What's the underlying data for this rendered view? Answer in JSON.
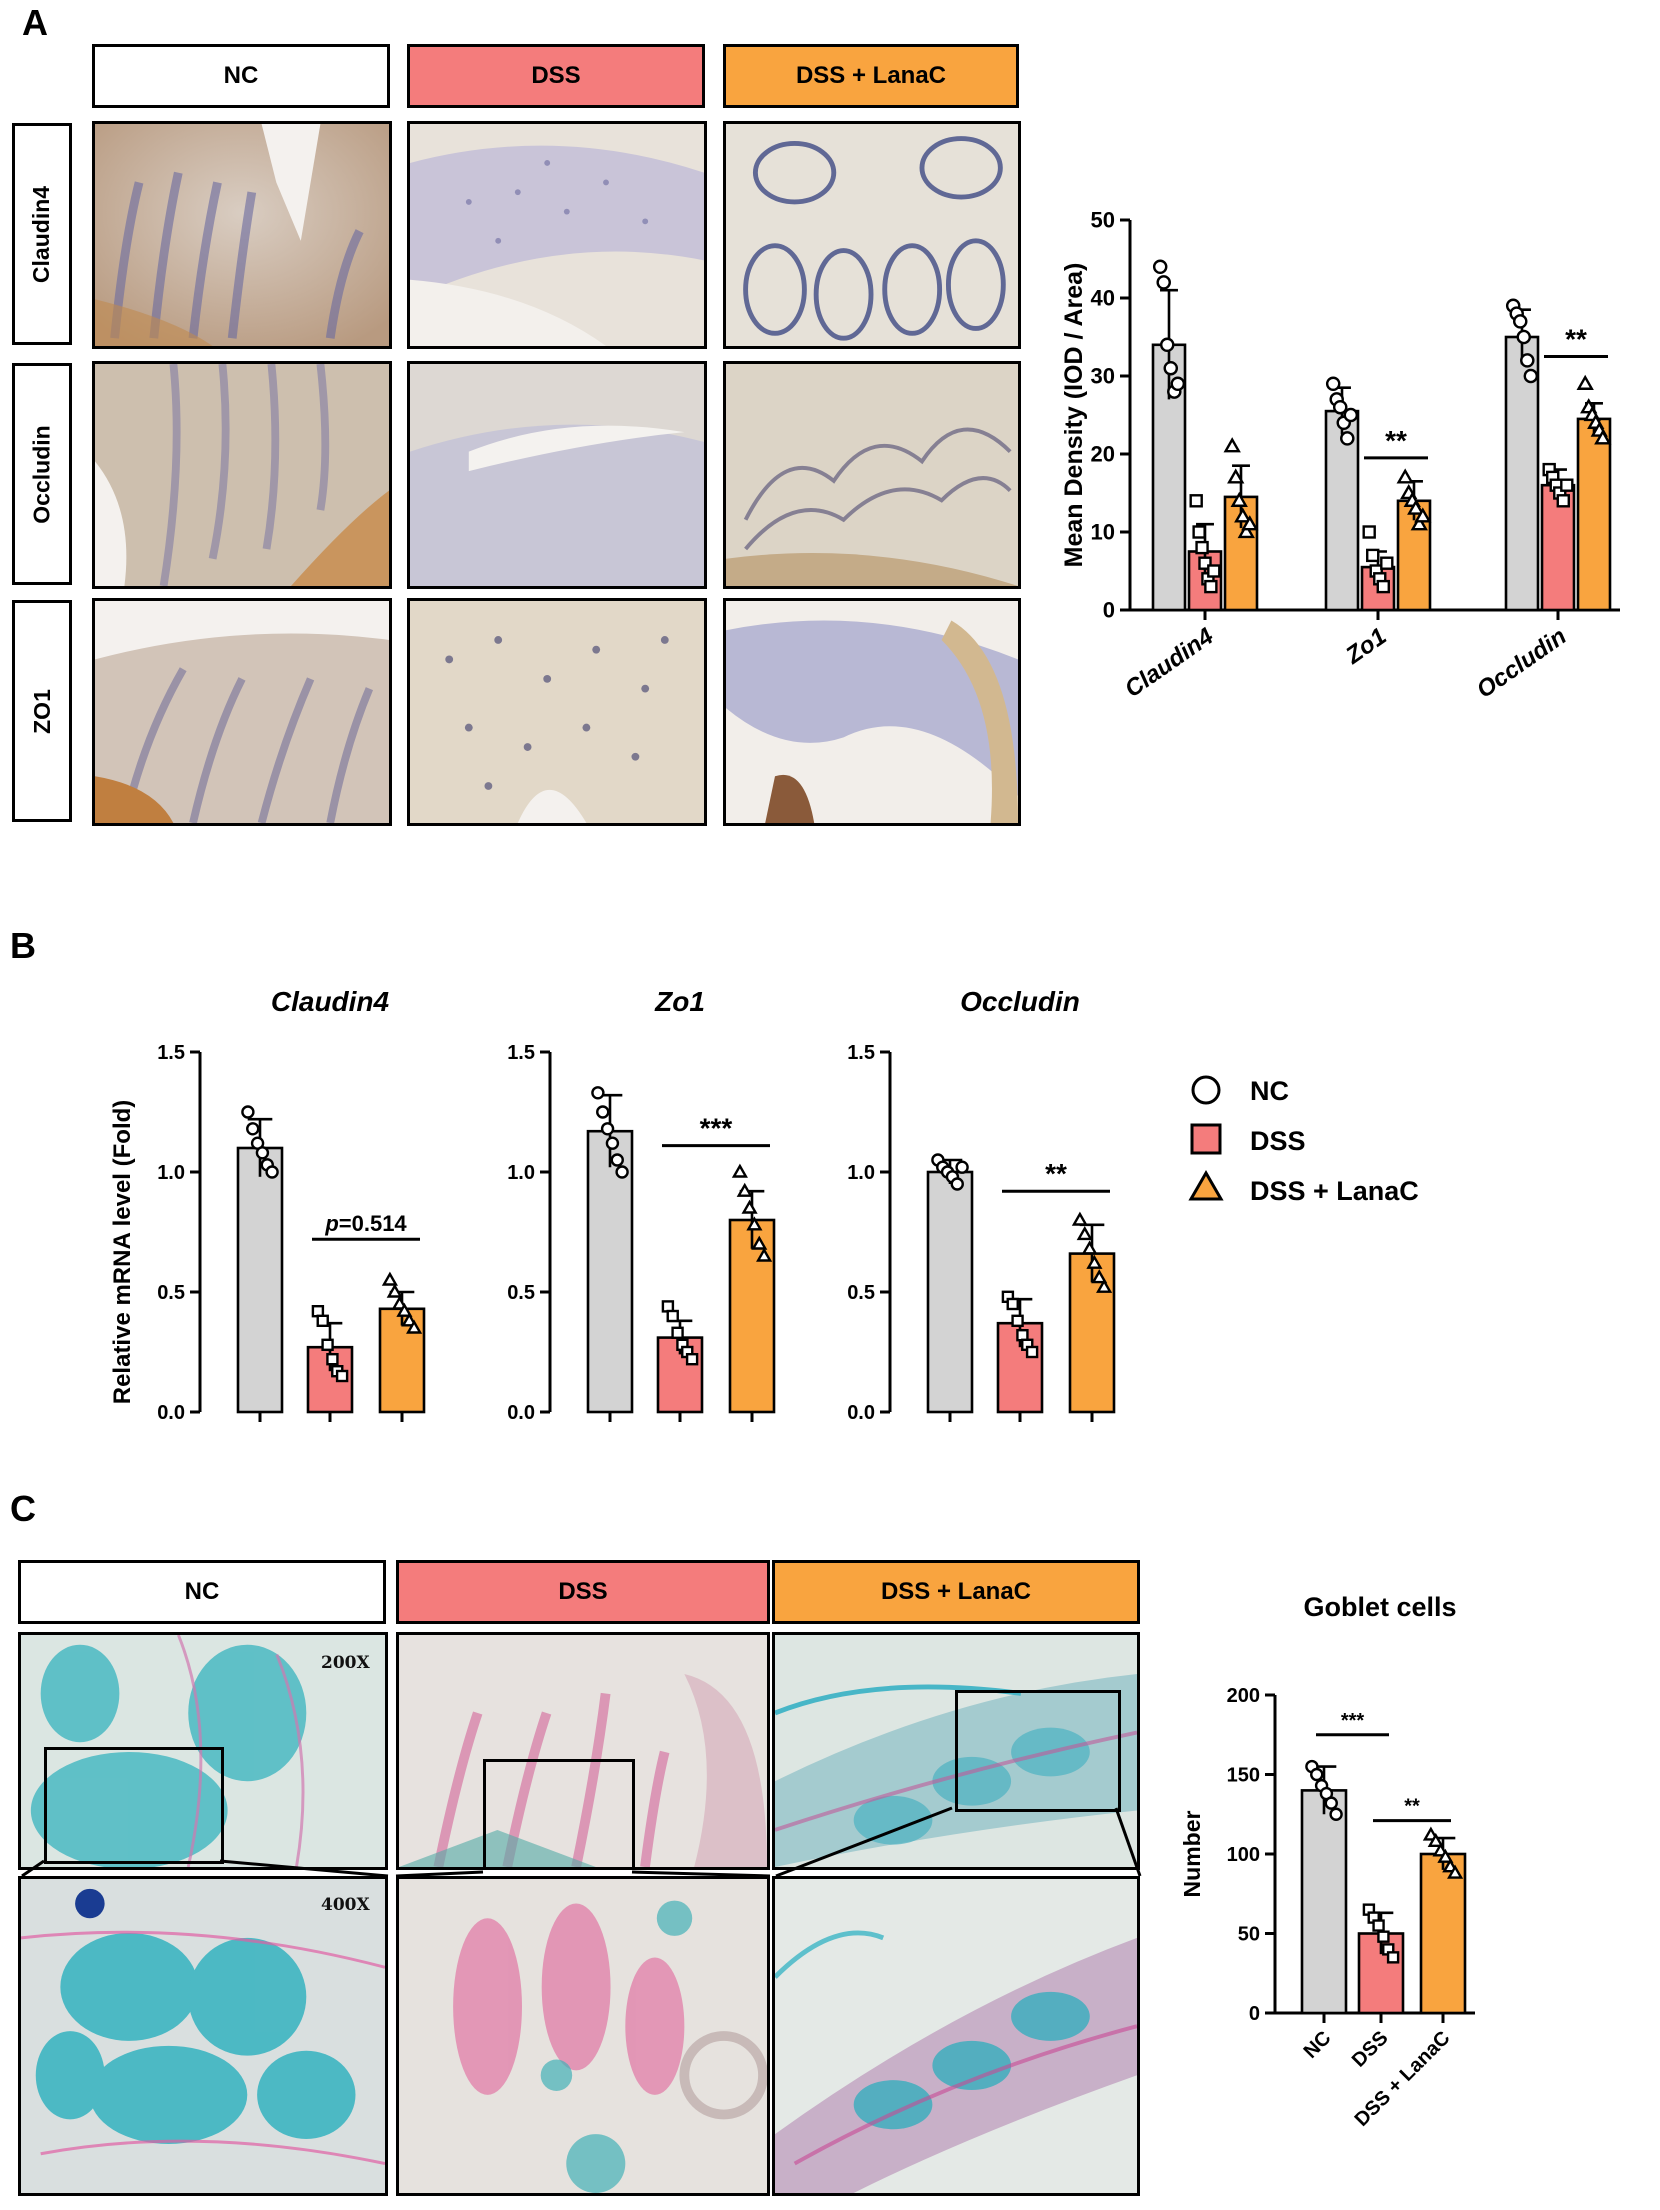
{
  "figure": {
    "panel_labels": {
      "A": "A",
      "B": "B",
      "C": "C"
    },
    "group_labels": {
      "nc": "NC",
      "dss": "DSS",
      "lana": "DSS + LanaC"
    },
    "row_labels": [
      "Claudin4",
      "Occludin",
      "ZO1"
    ],
    "magnifications": {
      "low": "200X",
      "high": "400X"
    },
    "colors": {
      "nc": "#d3d3d3",
      "dss": "#f47c7c",
      "lana": "#f9a43f"
    }
  },
  "chart_data": [
    {
      "id": "A",
      "type": "bar",
      "title": "",
      "xlabel": "",
      "ylabel": "Mean Density (IOD / Area)",
      "ylim": [
        0,
        50
      ],
      "yticks": [
        0,
        10,
        20,
        30,
        40,
        50
      ],
      "categories": [
        "Claudin4",
        "Zo1",
        "Occludin"
      ],
      "series": [
        {
          "name": "NC",
          "values": [
            34,
            25.5,
            35
          ],
          "err": [
            7,
            3,
            3.5
          ],
          "points": [
            [
              44,
              42,
              34,
              31,
              28,
              29
            ],
            [
              29,
              27,
              26,
              24,
              22,
              25
            ],
            [
              39,
              38,
              37,
              35,
              32,
              30
            ]
          ]
        },
        {
          "name": "DSS",
          "values": [
            7.5,
            5.5,
            16
          ],
          "err": [
            3.5,
            2,
            2
          ],
          "points": [
            [
              14,
              10,
              8,
              6,
              4,
              3,
              5
            ],
            [
              10,
              7,
              5,
              4,
              3,
              6
            ],
            [
              18,
              17,
              16,
              15,
              14,
              16
            ]
          ]
        },
        {
          "name": "DSS + LanaC",
          "values": [
            14.5,
            14,
            24.5
          ],
          "err": [
            4,
            2.5,
            2
          ],
          "points": [
            [
              21,
              17,
              14,
              12,
              10,
              11
            ],
            [
              17,
              15,
              14,
              13,
              11,
              12
            ],
            [
              29,
              26,
              25,
              24,
              23,
              22
            ]
          ]
        }
      ],
      "annotations": [
        {
          "category": 1,
          "from": 1,
          "to": 2,
          "text": "**",
          "y": 19.5
        },
        {
          "category": 2,
          "from": 1,
          "to": 2,
          "text": "**",
          "y": 32.5
        }
      ]
    },
    {
      "id": "B1",
      "type": "bar",
      "title": "Claudin4",
      "xlabel": "",
      "ylabel": "Relative mRNA level (Fold)",
      "ylim": [
        0,
        1.5
      ],
      "yticks": [
        0.0,
        0.5,
        1.0,
        1.5
      ],
      "categories": [
        "NC",
        "DSS",
        "DSS + LanaC"
      ],
      "values": [
        1.1,
        0.27,
        0.43
      ],
      "err": [
        0.12,
        0.1,
        0.07
      ],
      "points": [
        [
          1.25,
          1.18,
          1.12,
          1.08,
          1.03,
          1.0
        ],
        [
          0.42,
          0.38,
          0.28,
          0.22,
          0.17,
          0.15
        ],
        [
          0.55,
          0.5,
          0.45,
          0.42,
          0.38,
          0.35
        ]
      ],
      "annotations": [
        {
          "from": 1,
          "to": 2,
          "text": "p=0.514",
          "y": 0.72
        }
      ]
    },
    {
      "id": "B2",
      "type": "bar",
      "title": "Zo1",
      "xlabel": "",
      "ylabel": "",
      "ylim": [
        0,
        1.5
      ],
      "yticks": [
        0.0,
        0.5,
        1.0,
        1.5
      ],
      "categories": [
        "NC",
        "DSS",
        "DSS + LanaC"
      ],
      "values": [
        1.17,
        0.31,
        0.8
      ],
      "err": [
        0.15,
        0.07,
        0.12
      ],
      "points": [
        [
          1.33,
          1.25,
          1.18,
          1.12,
          1.05,
          1.0
        ],
        [
          0.44,
          0.4,
          0.33,
          0.28,
          0.25,
          0.22
        ],
        [
          1.0,
          0.92,
          0.85,
          0.78,
          0.7,
          0.65
        ]
      ],
      "annotations": [
        {
          "from": 1,
          "to": 2,
          "text": "***",
          "y": 1.11
        }
      ]
    },
    {
      "id": "B3",
      "type": "bar",
      "title": "Occludin",
      "xlabel": "",
      "ylabel": "",
      "ylim": [
        0,
        1.5
      ],
      "yticks": [
        0.0,
        0.5,
        1.0,
        1.5
      ],
      "categories": [
        "NC",
        "DSS",
        "DSS + LanaC"
      ],
      "values": [
        1.0,
        0.37,
        0.66
      ],
      "err": [
        0.05,
        0.1,
        0.12
      ],
      "points": [
        [
          1.05,
          1.02,
          1.0,
          0.98,
          0.95,
          1.02
        ],
        [
          0.48,
          0.45,
          0.38,
          0.32,
          0.28,
          0.25
        ],
        [
          0.8,
          0.74,
          0.68,
          0.62,
          0.56,
          0.52
        ]
      ],
      "annotations": [
        {
          "from": 1,
          "to": 2,
          "text": "**",
          "y": 0.92
        }
      ]
    },
    {
      "id": "C",
      "type": "bar",
      "title": "Goblet cells",
      "xlabel": "",
      "ylabel": "Number",
      "ylim": [
        0,
        200
      ],
      "yticks": [
        0,
        50,
        100,
        150,
        200
      ],
      "categories": [
        "NC",
        "DSS",
        "DSS + LanaC"
      ],
      "values": [
        140,
        50,
        100
      ],
      "err": [
        15,
        13,
        10
      ],
      "points": [
        [
          155,
          150,
          143,
          138,
          132,
          125
        ],
        [
          65,
          60,
          55,
          48,
          40,
          35
        ],
        [
          112,
          108,
          102,
          98,
          92,
          88
        ]
      ],
      "annotations": [
        {
          "from": 0,
          "to": 1,
          "text": "***",
          "y": 175
        },
        {
          "from": 1,
          "to": 2,
          "text": "**",
          "y": 121
        }
      ]
    }
  ],
  "legend": {
    "entries": [
      {
        "label": "NC",
        "marker": "circle"
      },
      {
        "label": "DSS",
        "marker": "square"
      },
      {
        "label": "DSS + LanaC",
        "marker": "triangle"
      }
    ]
  }
}
